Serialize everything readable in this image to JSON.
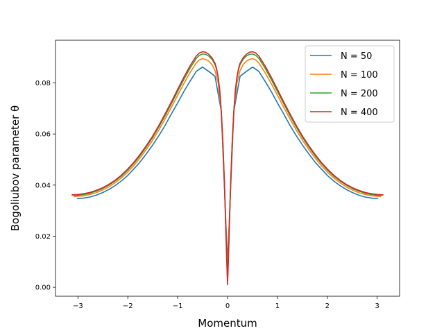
{
  "chart_data": {
    "type": "line",
    "title": "",
    "xlabel": "Momentum",
    "ylabel": "Bogoliubov parameter θ",
    "xlim": [
      -3.45,
      3.45
    ],
    "ylim": [
      -0.0035,
      0.0967
    ],
    "xticks": [
      -3,
      -2,
      -1,
      0,
      1,
      2,
      3
    ],
    "xtick_labels": [
      "−3",
      "−2",
      "−1",
      "0",
      "1",
      "2",
      "3"
    ],
    "yticks": [
      0.0,
      0.02,
      0.04,
      0.06,
      0.08
    ],
    "ytick_labels": [
      "0.00",
      "0.02",
      "0.04",
      "0.06",
      "0.08"
    ],
    "grid": false,
    "legend_position": "top-right",
    "series": [
      {
        "name": "N = 50",
        "color": "#1f77b4",
        "x": [
          0.0,
          0.126,
          0.251,
          0.377,
          0.503,
          0.628,
          0.754,
          0.88,
          1.005,
          1.131,
          1.257,
          1.382,
          1.508,
          1.634,
          1.759,
          1.885,
          2.011,
          2.136,
          2.262,
          2.388,
          2.513,
          2.639,
          2.765,
          2.89,
          3.016
        ],
        "y": [
          0.0096,
          0.069,
          0.0826,
          0.0845,
          0.0862,
          0.0845,
          0.0806,
          0.0765,
          0.072,
          0.0677,
          0.0632,
          0.0592,
          0.0555,
          0.0521,
          0.0489,
          0.0462,
          0.0436,
          0.0415,
          0.0397,
          0.0382,
          0.037,
          0.036,
          0.0353,
          0.0349,
          0.0347
        ]
      },
      {
        "name": "N = 100",
        "color": "#ff7f0e",
        "x": [
          0.0,
          0.063,
          0.126,
          0.188,
          0.251,
          0.314,
          0.377,
          0.44,
          0.503,
          0.565,
          0.628,
          0.754,
          0.88,
          1.005,
          1.131,
          1.257,
          1.382,
          1.508,
          1.634,
          1.759,
          1.885,
          2.011,
          2.136,
          2.262,
          2.388,
          2.513,
          2.639,
          2.765,
          2.89,
          3.016,
          3.079
        ],
        "y": [
          0.0055,
          0.041,
          0.069,
          0.08,
          0.0848,
          0.0872,
          0.0885,
          0.0892,
          0.0895,
          0.089,
          0.0878,
          0.084,
          0.0796,
          0.075,
          0.0703,
          0.0657,
          0.0614,
          0.0574,
          0.0538,
          0.0505,
          0.0475,
          0.0449,
          0.0427,
          0.0408,
          0.0392,
          0.038,
          0.037,
          0.0363,
          0.0358,
          0.0356,
          0.0355
        ]
      },
      {
        "name": "N = 200",
        "color": "#2ca02c",
        "x": [
          0.0,
          0.031,
          0.063,
          0.094,
          0.126,
          0.157,
          0.188,
          0.22,
          0.251,
          0.314,
          0.377,
          0.44,
          0.503,
          0.565,
          0.628,
          0.754,
          0.88,
          1.005,
          1.131,
          1.257,
          1.382,
          1.508,
          1.634,
          1.759,
          1.885,
          2.011,
          2.136,
          2.262,
          2.388,
          2.513,
          2.639,
          2.765,
          2.89,
          3.016,
          3.11
        ],
        "y": [
          0.0025,
          0.02,
          0.041,
          0.057,
          0.069,
          0.077,
          0.082,
          0.0852,
          0.0872,
          0.0893,
          0.0905,
          0.0912,
          0.0913,
          0.0908,
          0.0896,
          0.0857,
          0.0812,
          0.0765,
          0.0717,
          0.067,
          0.0626,
          0.0585,
          0.0548,
          0.0514,
          0.0484,
          0.0457,
          0.0434,
          0.0415,
          0.0399,
          0.0386,
          0.0376,
          0.0368,
          0.0363,
          0.036,
          0.036
        ]
      },
      {
        "name": "N = 400",
        "color": "#d62728",
        "x": [
          0.0,
          0.016,
          0.031,
          0.047,
          0.063,
          0.094,
          0.126,
          0.157,
          0.188,
          0.22,
          0.251,
          0.314,
          0.377,
          0.44,
          0.503,
          0.565,
          0.628,
          0.754,
          0.88,
          1.005,
          1.131,
          1.257,
          1.382,
          1.508,
          1.634,
          1.759,
          1.885,
          2.011,
          2.136,
          2.262,
          2.388,
          2.513,
          2.639,
          2.765,
          2.89,
          3.016,
          3.126
        ],
        "y": [
          0.001,
          0.01,
          0.02,
          0.031,
          0.041,
          0.057,
          0.069,
          0.0772,
          0.0823,
          0.0856,
          0.0877,
          0.0899,
          0.0912,
          0.092,
          0.0922,
          0.0917,
          0.0905,
          0.0866,
          0.0821,
          0.0773,
          0.0724,
          0.0677,
          0.0632,
          0.059,
          0.0553,
          0.0519,
          0.0488,
          0.0461,
          0.0438,
          0.0418,
          0.0402,
          0.0389,
          0.0379,
          0.0371,
          0.0366,
          0.0363,
          0.0362
        ]
      }
    ]
  }
}
